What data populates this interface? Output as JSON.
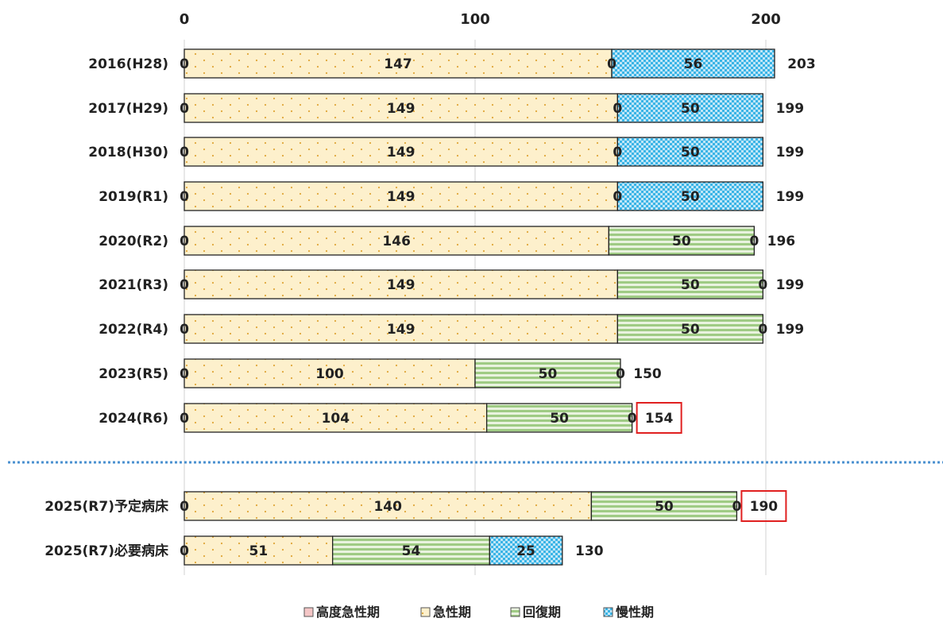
{
  "chart_data": {
    "type": "bar",
    "orientation": "horizontal",
    "stacked": true,
    "xlim": [
      0,
      200
    ],
    "x_ticks": [
      "0",
      "100",
      "200"
    ],
    "x_tick_values": [
      0,
      100,
      200
    ],
    "x_axis_position": "top",
    "grid": true,
    "legend_position": "bottom",
    "categories": [
      "2016(H28)",
      "2017(H29)",
      "2018(H30)",
      "2019(R1)",
      "2020(R2)",
      "2021(R3)",
      "2022(R4)",
      "2023(R5)",
      "2024(R6)",
      "2025(R7)予定病床",
      "2025(R7)必要病床"
    ],
    "series": [
      {
        "name": "高度急性期",
        "values": [
          0,
          0,
          0,
          0,
          0,
          0,
          0,
          0,
          0,
          0,
          0
        ],
        "labels": [
          "0",
          "0",
          "0",
          "0",
          "0",
          "0",
          "0",
          "0",
          "0",
          "0",
          "0"
        ],
        "color": "#f4c6c6",
        "pattern": "solid"
      },
      {
        "name": "急性期",
        "values": [
          147,
          149,
          149,
          149,
          146,
          149,
          149,
          100,
          104,
          140,
          51
        ],
        "labels": [
          "147",
          "149",
          "149",
          "149",
          "146",
          "149",
          "149",
          "100",
          "104",
          "140",
          "51"
        ],
        "color": "#fdf0cc",
        "pattern": "dots"
      },
      {
        "name": "回復期",
        "values": [
          0,
          0,
          0,
          0,
          50,
          50,
          50,
          50,
          50,
          50,
          54
        ],
        "labels": [
          "0",
          "0",
          "0",
          "0",
          "50",
          "50",
          "50",
          "50",
          "50",
          "50",
          "54"
        ],
        "color": "#a9d08e",
        "pattern": "stripes"
      },
      {
        "name": "慢性期",
        "values": [
          56,
          50,
          50,
          50,
          0,
          0,
          0,
          0,
          0,
          0,
          25
        ],
        "labels": [
          "56",
          "50",
          "50",
          "50",
          "0",
          "0",
          "0",
          "0",
          "0",
          "0",
          "25"
        ],
        "color": "#3ab4e6",
        "pattern": "checker"
      }
    ],
    "totals": [
      "203",
      "199",
      "199",
      "199",
      "196",
      "199",
      "199",
      "150",
      "154",
      "190",
      "130"
    ],
    "highlighted_totals": [
      "2024(R6)",
      "2025(R7)予定病床"
    ],
    "separator_after": "2024(R6)",
    "colors": {
      "highlight_box": "#e02020",
      "separator": "#4a90d0",
      "grid": "#d9d9d9",
      "bar_border": "#222222",
      "text": "#222222"
    }
  }
}
